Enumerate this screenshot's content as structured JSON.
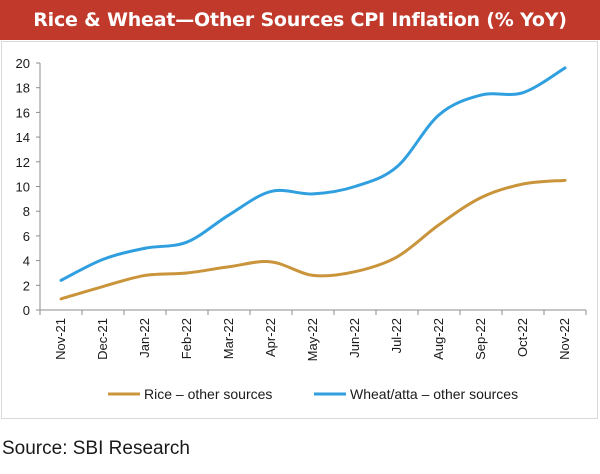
{
  "header": {
    "title": "Rice & Wheat—Other Sources CPI Inflation (% YoY)",
    "background_color": "#c0392b"
  },
  "footer": {
    "source": "Source: SBI Research"
  },
  "chart_data": {
    "type": "line",
    "title": "Rice & Wheat—Other Sources CPI Inflation (% YoY)",
    "xlabel": "",
    "ylabel": "",
    "categories": [
      "Nov-21",
      "Dec-21",
      "Jan-22",
      "Feb-22",
      "Mar-22",
      "Apr-22",
      "May-22",
      "Jun-22",
      "Jul-22",
      "Aug-22",
      "Sep-22",
      "Oct-22",
      "Nov-22"
    ],
    "yticks": [
      0,
      2,
      4,
      6,
      8,
      10,
      12,
      14,
      16,
      18,
      20
    ],
    "ylim": [
      0,
      20
    ],
    "grid": false,
    "legend_position": "bottom",
    "series": [
      {
        "name": "Rice – other sources",
        "color": "#c9943a",
        "values": [
          0.9,
          1.9,
          2.8,
          3.0,
          3.5,
          3.9,
          2.8,
          3.1,
          4.3,
          6.9,
          9.1,
          10.2,
          10.5
        ]
      },
      {
        "name": "Wheat/atta – other sources",
        "color": "#2f9fe0",
        "values": [
          2.4,
          4.1,
          5.0,
          5.5,
          7.7,
          9.6,
          9.4,
          10.0,
          11.6,
          15.8,
          17.4,
          17.6,
          19.6
        ]
      }
    ]
  }
}
